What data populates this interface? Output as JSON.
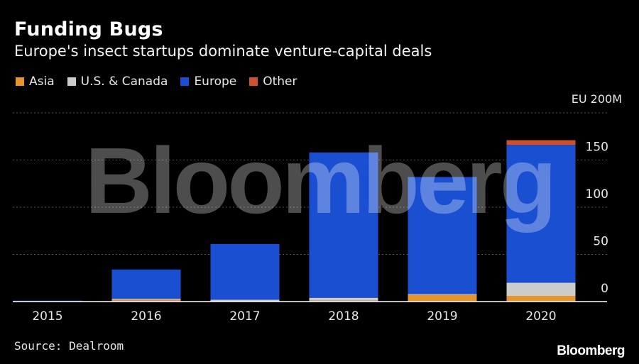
{
  "title": "Funding Bugs",
  "subtitle": "Europe's insect startups dominate venture-capital deals",
  "unit_label": "EU 200M",
  "source": "Source: Dealroom",
  "brand": "Bloomberg",
  "watermark": "Bloomberg",
  "legend": [
    {
      "name": "Asia",
      "color": "#e8942d"
    },
    {
      "name": "U.S. & Canada",
      "color": "#cccccc"
    },
    {
      "name": "Europe",
      "color": "#1a4fd1"
    },
    {
      "name": "Other",
      "color": "#d1502e"
    }
  ],
  "chart_data": {
    "type": "bar",
    "stacked": true,
    "categories": [
      "2015",
      "2016",
      "2017",
      "2018",
      "2019",
      "2020"
    ],
    "series": [
      {
        "name": "Asia",
        "color": "#e8942d",
        "values": [
          0,
          2,
          0,
          1,
          7,
          6
        ]
      },
      {
        "name": "U.S. & Canada",
        "color": "#cccccc",
        "values": [
          0,
          1,
          2,
          3,
          1,
          14
        ]
      },
      {
        "name": "Europe",
        "color": "#1a4fd1",
        "values": [
          1,
          31,
          59,
          154,
          124,
          146
        ]
      },
      {
        "name": "Other",
        "color": "#d1502e",
        "values": [
          0,
          0,
          0,
          0,
          0,
          5
        ]
      }
    ],
    "yticks": [
      0,
      50,
      100,
      150
    ],
    "ylim": [
      0,
      200
    ],
    "grid": true,
    "legend_position": "top-left"
  }
}
